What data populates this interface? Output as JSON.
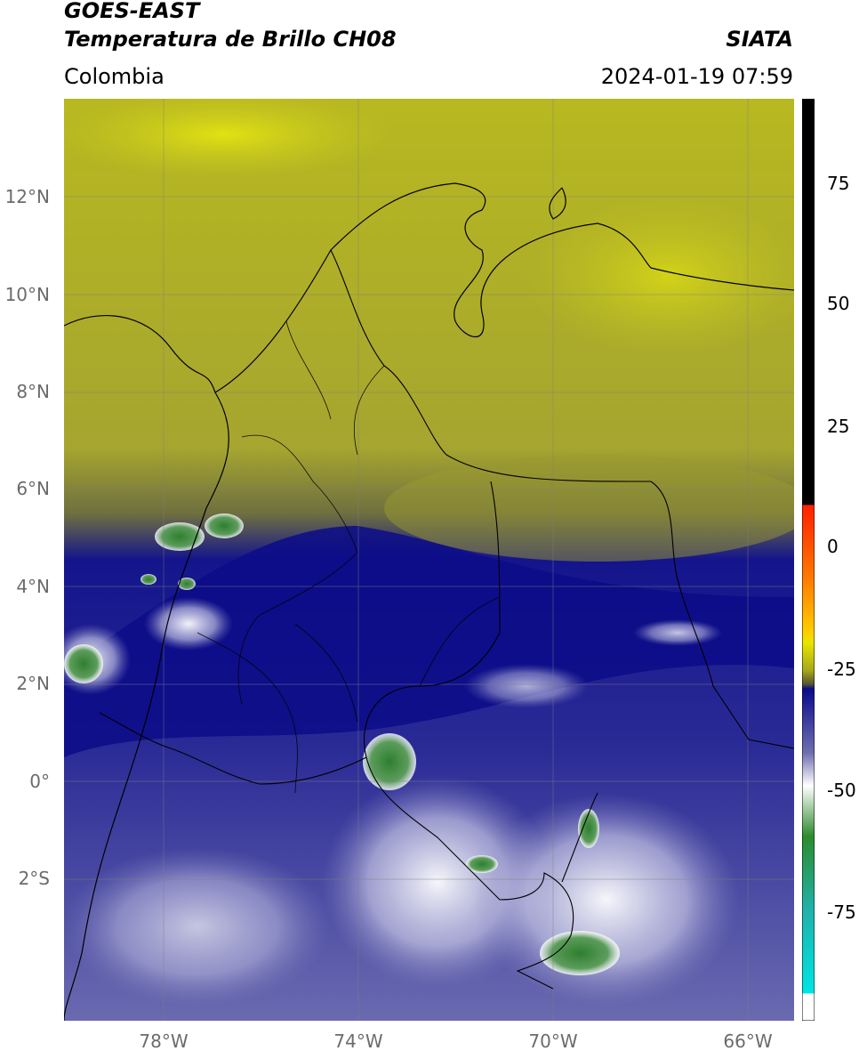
{
  "header": {
    "title_line1": "GOES-EAST",
    "title_line2": "Temperatura de Brillo CH08",
    "region": "Colombia",
    "source": "SIATA",
    "datetime": "2024-01-19 07:59"
  },
  "map": {
    "lat_labels": [
      "12°N",
      "10°N",
      "8°N",
      "6°N",
      "4°N",
      "2°N",
      "0°",
      "2°S"
    ],
    "lon_labels": [
      "78°W",
      "74°W",
      "70°W",
      "66°W"
    ],
    "lat_range": [
      -4.9,
      14.0
    ],
    "lon_range": [
      -80.0,
      -65.0
    ]
  },
  "colorbar": {
    "tick_labels": [
      "75",
      "50",
      "25",
      "0",
      "-25",
      "-50",
      "-75"
    ],
    "range": [
      -97,
      90
    ],
    "colors": {
      "black": "#000000",
      "red": "#ff2200",
      "orange": "#ff8c00",
      "yellow": "#e6e600",
      "olive": "#a8a81a",
      "dark_olive": "#555533",
      "navy": "#0a0a8c",
      "slate": "#7a7ab8",
      "white": "#ffffff",
      "green": "#2e8b2e",
      "teal": "#20b2aa",
      "cyan": "#00e5e5"
    }
  }
}
